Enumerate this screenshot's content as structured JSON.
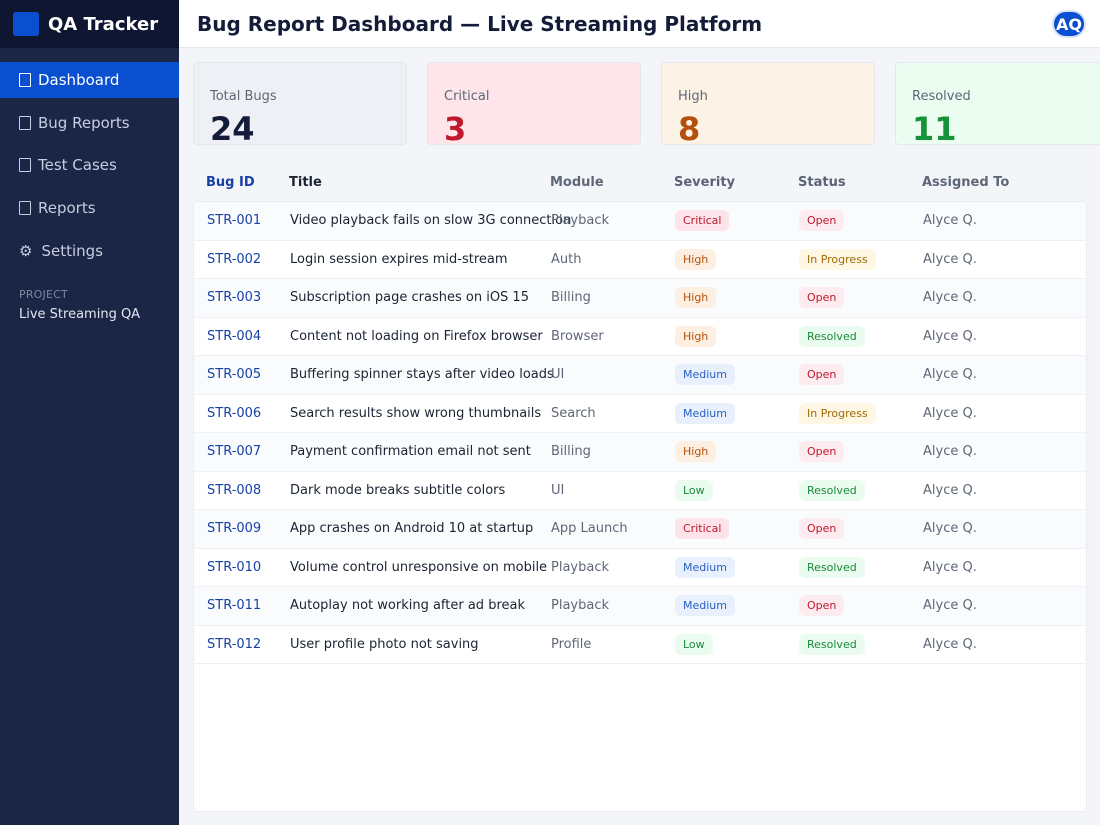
{
  "app": {
    "name": "QA Tracker"
  },
  "sidebar": {
    "items": [
      {
        "label": "Dashboard",
        "icon": "dashboard-icon",
        "active": true
      },
      {
        "label": "Bug Reports",
        "icon": "bug-icon",
        "active": false
      },
      {
        "label": "Test Cases",
        "icon": "checklist-icon",
        "active": false
      },
      {
        "label": "Reports",
        "icon": "chart-icon",
        "active": false
      },
      {
        "label": "Settings",
        "icon": "gear-icon",
        "active": false
      }
    ],
    "project_label": "PROJECT",
    "project_name": "Live Streaming QA"
  },
  "header": {
    "title": "Bug Report Dashboard — Live Streaming Platform",
    "avatar_initials": "AQ"
  },
  "stats": [
    {
      "label": "Total Bugs",
      "value": "24",
      "bg": "#eff0f5",
      "color": "#141c3a"
    },
    {
      "label": "Critical",
      "value": "3",
      "bg": "#fde5ea",
      "color": "#c0182c"
    },
    {
      "label": "High",
      "value": "8",
      "bg": "#fdf2e6",
      "color": "#b4500e"
    },
    {
      "label": "Resolved",
      "value": "11",
      "bg": "#ebfdf1",
      "color": "#169238"
    }
  ],
  "table": {
    "columns": [
      "Bug ID",
      "Title",
      "Module",
      "Severity",
      "Status",
      "Assigned To"
    ],
    "rows": [
      {
        "id": "STR-001",
        "title": "Video playback fails on slow 3G connection",
        "module": "Playback",
        "severity": "Critical",
        "status": "Open",
        "assignee": "Alyce Q."
      },
      {
        "id": "STR-002",
        "title": "Login session expires mid-stream",
        "module": "Auth",
        "severity": "High",
        "status": "In Progress",
        "assignee": "Alyce Q."
      },
      {
        "id": "STR-003",
        "title": "Subscription page crashes on iOS 15",
        "module": "Billing",
        "severity": "High",
        "status": "Open",
        "assignee": "Alyce Q."
      },
      {
        "id": "STR-004",
        "title": "Content not loading on Firefox browser",
        "module": "Browser",
        "severity": "High",
        "status": "Resolved",
        "assignee": "Alyce Q."
      },
      {
        "id": "STR-005",
        "title": "Buffering spinner stays after video loads",
        "module": "UI",
        "severity": "Medium",
        "status": "Open",
        "assignee": "Alyce Q."
      },
      {
        "id": "STR-006",
        "title": "Search results show wrong thumbnails",
        "module": "Search",
        "severity": "Medium",
        "status": "In Progress",
        "assignee": "Alyce Q."
      },
      {
        "id": "STR-007",
        "title": "Payment confirmation email not sent",
        "module": "Billing",
        "severity": "High",
        "status": "Open",
        "assignee": "Alyce Q."
      },
      {
        "id": "STR-008",
        "title": "Dark mode breaks subtitle colors",
        "module": "UI",
        "severity": "Low",
        "status": "Resolved",
        "assignee": "Alyce Q."
      },
      {
        "id": "STR-009",
        "title": "App crashes on Android 10 at startup",
        "module": "App Launch",
        "severity": "Critical",
        "status": "Open",
        "assignee": "Alyce Q."
      },
      {
        "id": "STR-010",
        "title": "Volume control unresponsive on mobile",
        "module": "Playback",
        "severity": "Medium",
        "status": "Resolved",
        "assignee": "Alyce Q."
      },
      {
        "id": "STR-011",
        "title": "Autoplay not working after ad break",
        "module": "Playback",
        "severity": "Medium",
        "status": "Open",
        "assignee": "Alyce Q."
      },
      {
        "id": "STR-012",
        "title": "User profile photo not saving",
        "module": "Profile",
        "severity": "Low",
        "status": "Resolved",
        "assignee": "Alyce Q."
      }
    ]
  },
  "badge_colors": {
    "Critical": {
      "bg": "#fde4ea",
      "fg": "#c0182c"
    },
    "High": {
      "bg": "#fdf0e2",
      "fg": "#b4500e"
    },
    "Medium": {
      "bg": "#e9f0fd",
      "fg": "#2a5fc4"
    },
    "Low": {
      "bg": "#eafbef",
      "fg": "#1a8a3a"
    },
    "Open": {
      "bg": "#fdecef",
      "fg": "#c0182c"
    },
    "In Progress": {
      "bg": "#fdf7e3",
      "fg": "#a06a05"
    },
    "Resolved": {
      "bg": "#eafbef",
      "fg": "#1a8a3a"
    }
  }
}
